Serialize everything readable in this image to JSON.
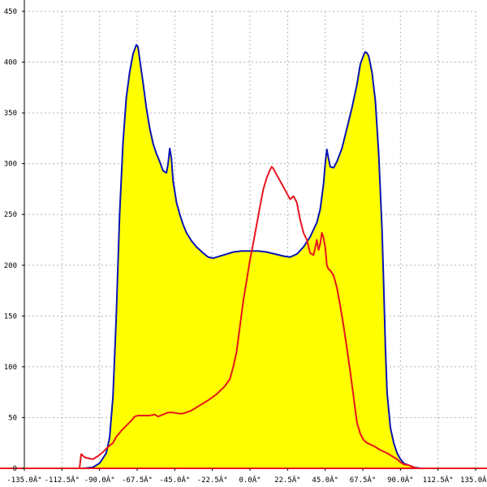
{
  "chart_data": {
    "type": "area",
    "title": "",
    "xlabel": "",
    "ylabel": "",
    "xlim": [
      -135,
      135
    ],
    "ylim": [
      0,
      450
    ],
    "grid": true,
    "x_ticks": [
      -135,
      -112.5,
      -90,
      -67.5,
      -45,
      -22.5,
      0,
      22.5,
      45,
      67.5,
      90,
      112.5,
      135
    ],
    "x_tick_labels": [
      "-135.0Â°",
      "-112.5Â°",
      "-90.0Â°",
      "-67.5Â°",
      "-45.0Â°",
      "-22.5Â°",
      "0.0Â°",
      "22.5Â°",
      "45.0Â°",
      "67.5Â°",
      "90.0Â°",
      "112.5Â°",
      "135.0Â°"
    ],
    "y_ticks": [
      0,
      50,
      100,
      150,
      200,
      250,
      300,
      350,
      400,
      450
    ],
    "y_tick_labels": [
      "0",
      "50",
      "100",
      "150",
      "200",
      "250",
      "300",
      "350",
      "400",
      "450"
    ],
    "series": [
      {
        "color": "#0a14b4",
        "fill": "#ffff00",
        "points": [
          [
            -100,
            0
          ],
          [
            -94,
            1
          ],
          [
            -90,
            5
          ],
          [
            -86,
            15
          ],
          [
            -84,
            30
          ],
          [
            -82,
            70
          ],
          [
            -80,
            150
          ],
          [
            -78,
            250
          ],
          [
            -76,
            320
          ],
          [
            -74,
            365
          ],
          [
            -72,
            390
          ],
          [
            -70,
            408
          ],
          [
            -68,
            417
          ],
          [
            -67,
            415
          ],
          [
            -66,
            403
          ],
          [
            -64,
            380
          ],
          [
            -62,
            355
          ],
          [
            -60,
            335
          ],
          [
            -58,
            320
          ],
          [
            -56,
            310
          ],
          [
            -54,
            302
          ],
          [
            -52,
            293
          ],
          [
            -50,
            291
          ],
          [
            -49,
            300
          ],
          [
            -48,
            315
          ],
          [
            -47,
            305
          ],
          [
            -46,
            283
          ],
          [
            -44,
            262
          ],
          [
            -42,
            250
          ],
          [
            -40,
            240
          ],
          [
            -38,
            232
          ],
          [
            -35,
            224
          ],
          [
            -32,
            218
          ],
          [
            -28,
            212
          ],
          [
            -25,
            208
          ],
          [
            -22,
            207
          ],
          [
            -18,
            209
          ],
          [
            -14,
            211
          ],
          [
            -10,
            213
          ],
          [
            -5,
            214
          ],
          [
            0,
            214
          ],
          [
            5,
            214
          ],
          [
            10,
            213
          ],
          [
            15,
            211
          ],
          [
            20,
            209
          ],
          [
            24,
            208
          ],
          [
            28,
            211
          ],
          [
            32,
            218
          ],
          [
            36,
            228
          ],
          [
            40,
            242
          ],
          [
            42,
            255
          ],
          [
            44,
            280
          ],
          [
            45,
            300
          ],
          [
            46,
            314
          ],
          [
            47,
            305
          ],
          [
            48,
            297
          ],
          [
            50,
            296
          ],
          [
            52,
            302
          ],
          [
            55,
            315
          ],
          [
            58,
            335
          ],
          [
            61,
            355
          ],
          [
            64,
            378
          ],
          [
            66,
            398
          ],
          [
            68,
            407
          ],
          [
            69,
            410
          ],
          [
            70,
            409
          ],
          [
            71,
            406
          ],
          [
            73,
            390
          ],
          [
            75,
            362
          ],
          [
            77,
            310
          ],
          [
            79,
            235
          ],
          [
            80,
            180
          ],
          [
            81,
            120
          ],
          [
            82,
            75
          ],
          [
            84,
            40
          ],
          [
            86,
            25
          ],
          [
            88,
            15
          ],
          [
            90,
            9
          ],
          [
            92,
            5
          ],
          [
            95,
            3
          ],
          [
            98,
            1
          ],
          [
            102,
            0
          ]
        ]
      },
      {
        "color": "#e8141e",
        "points": [
          [
            -135,
            0
          ],
          [
            -102,
            0
          ],
          [
            -101,
            14
          ],
          [
            -99,
            11
          ],
          [
            -97,
            10
          ],
          [
            -94,
            9
          ],
          [
            -91,
            12
          ],
          [
            -88,
            16
          ],
          [
            -85,
            21
          ],
          [
            -82,
            25
          ],
          [
            -80,
            31
          ],
          [
            -77,
            37
          ],
          [
            -74,
            42
          ],
          [
            -71,
            47
          ],
          [
            -69,
            51
          ],
          [
            -67,
            52
          ],
          [
            -64,
            52
          ],
          [
            -60,
            52
          ],
          [
            -57,
            53
          ],
          [
            -55,
            51
          ],
          [
            -52,
            53
          ],
          [
            -49,
            55
          ],
          [
            -46,
            55
          ],
          [
            -43,
            54
          ],
          [
            -40,
            54
          ],
          [
            -35,
            57
          ],
          [
            -30,
            62
          ],
          [
            -25,
            67
          ],
          [
            -20,
            73
          ],
          [
            -15,
            81
          ],
          [
            -12,
            88
          ],
          [
            -10,
            100
          ],
          [
            -8,
            115
          ],
          [
            -6,
            140
          ],
          [
            -4,
            165
          ],
          [
            -2,
            185
          ],
          [
            0,
            205
          ],
          [
            2,
            222
          ],
          [
            4,
            240
          ],
          [
            6,
            258
          ],
          [
            8,
            275
          ],
          [
            10,
            286
          ],
          [
            12,
            294
          ],
          [
            13,
            297
          ],
          [
            14,
            295
          ],
          [
            16,
            289
          ],
          [
            18,
            283
          ],
          [
            20,
            277
          ],
          [
            22,
            271
          ],
          [
            24,
            265
          ],
          [
            26,
            268
          ],
          [
            28,
            262
          ],
          [
            30,
            245
          ],
          [
            32,
            232
          ],
          [
            34,
            225
          ],
          [
            36,
            212
          ],
          [
            38,
            210
          ],
          [
            39,
            217
          ],
          [
            40,
            225
          ],
          [
            41,
            215
          ],
          [
            42,
            221
          ],
          [
            43,
            232
          ],
          [
            44,
            227
          ],
          [
            45,
            218
          ],
          [
            46,
            200
          ],
          [
            47,
            196
          ],
          [
            48,
            195
          ],
          [
            50,
            190
          ],
          [
            52,
            178
          ],
          [
            54,
            160
          ],
          [
            56,
            140
          ],
          [
            58,
            118
          ],
          [
            60,
            95
          ],
          [
            62,
            70
          ],
          [
            64,
            45
          ],
          [
            66,
            34
          ],
          [
            68,
            28
          ],
          [
            70,
            25
          ],
          [
            74,
            22
          ],
          [
            78,
            18
          ],
          [
            82,
            15
          ],
          [
            85,
            12
          ],
          [
            88,
            9
          ],
          [
            90,
            6
          ],
          [
            92,
            4
          ],
          [
            95,
            3
          ],
          [
            100,
            0
          ],
          [
            135,
            0
          ]
        ]
      }
    ]
  }
}
